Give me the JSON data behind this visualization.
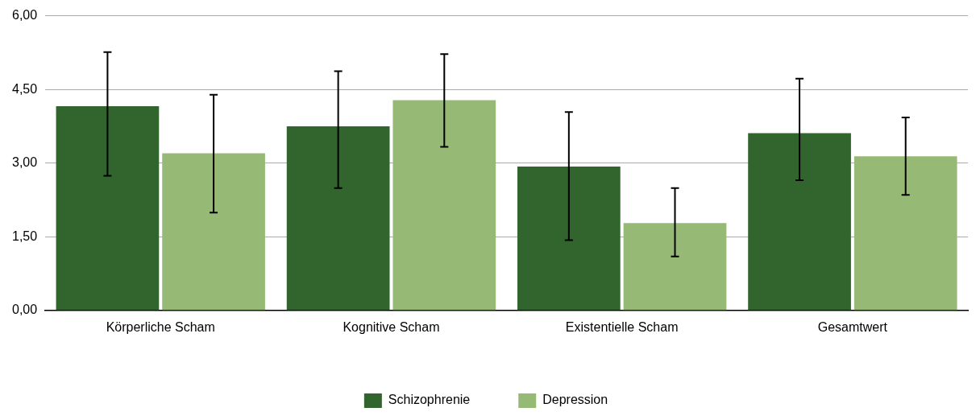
{
  "chart_data": {
    "type": "bar",
    "categories": [
      "Körperliche Scham",
      "Kognitive Scham",
      "Existentielle Scham",
      "Gesamtwert"
    ],
    "series": [
      {
        "name": "Schizophrenie",
        "color": "#32642d",
        "values": [
          4.16,
          3.75,
          2.93,
          3.61
        ],
        "errors": [
          [
            2.74,
            5.26
          ],
          [
            2.49,
            4.87
          ],
          [
            1.43,
            4.04
          ],
          [
            2.65,
            4.72
          ]
        ]
      },
      {
        "name": "Depression",
        "color": "#96ba76",
        "values": [
          3.2,
          4.28,
          1.78,
          3.14
        ],
        "errors": [
          [
            1.99,
            4.39
          ],
          [
            3.33,
            5.22
          ],
          [
            1.1,
            2.49
          ],
          [
            2.35,
            3.93
          ]
        ]
      }
    ],
    "ylim": [
      0,
      6
    ],
    "yticks": [
      {
        "value": 0,
        "label": "0,00"
      },
      {
        "value": 1.5,
        "label": "1,50"
      },
      {
        "value": 3,
        "label": "3,00"
      },
      {
        "value": 4.5,
        "label": "4,50"
      },
      {
        "value": 6,
        "label": "6,00"
      }
    ],
    "grid": "y",
    "legend": "bottom"
  }
}
